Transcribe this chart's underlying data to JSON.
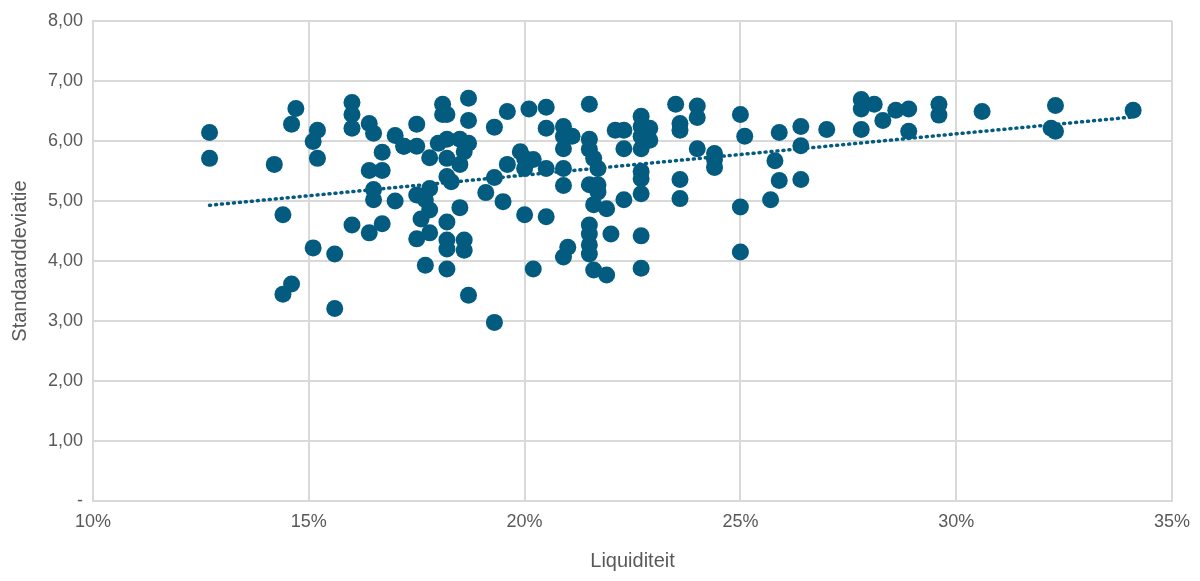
{
  "chart_data": {
    "type": "scatter",
    "xlabel": "Liquiditeit",
    "ylabel": "Standaarddeviatie",
    "xlim": [
      10,
      35
    ],
    "ylim": [
      0,
      8
    ],
    "xticks": [
      {
        "value": 10,
        "label": "10%"
      },
      {
        "value": 15,
        "label": "15%"
      },
      {
        "value": 20,
        "label": "20%"
      },
      {
        "value": 25,
        "label": "25%"
      },
      {
        "value": 30,
        "label": "30%"
      },
      {
        "value": 35,
        "label": "35%"
      }
    ],
    "yticks": [
      {
        "value": 0,
        "label": "-"
      },
      {
        "value": 1,
        "label": "1,00"
      },
      {
        "value": 2,
        "label": "2,00"
      },
      {
        "value": 3,
        "label": "3,00"
      },
      {
        "value": 4,
        "label": "4,00"
      },
      {
        "value": 5,
        "label": "5,00"
      },
      {
        "value": 6,
        "label": "6,00"
      },
      {
        "value": 7,
        "label": "7,00"
      },
      {
        "value": 8,
        "label": "8,00"
      }
    ],
    "grid": true,
    "legend": false,
    "marker": "circle",
    "series": [
      {
        "color": "#035b7f",
        "x": [
          12.7,
          12.7,
          14.2,
          14.4,
          14.4,
          14.6,
          14.7,
          14.6,
          15.2,
          15.1,
          15.2,
          15.1,
          15.6,
          15.6,
          16.0,
          16.0,
          16.0,
          16.4,
          16.5,
          17.0,
          17.2,
          16.7,
          16.4,
          16.7,
          16.5,
          16.5,
          17.0,
          16.0,
          16.4,
          16.7,
          18.1,
          18.1,
          18.2,
          18.7,
          18.7,
          17.5,
          17.2,
          17.5,
          17.8,
          18.0,
          18.2,
          18.5,
          18.7,
          18.6,
          18.2,
          18.5,
          18.2,
          18.3,
          17.8,
          17.5,
          17.7,
          17.8,
          17.6,
          18.5,
          18.2,
          17.8,
          17.5,
          18.2,
          18.6,
          18.2,
          18.6,
          17.7,
          18.2,
          18.7,
          19.3,
          19.3,
          19.6,
          19.1,
          19.3,
          19.5,
          19.6,
          19.9,
          20.0,
          20.2,
          20.0,
          20.5,
          20.0,
          20.5,
          20.2,
          20.1,
          20.5,
          20.5,
          20.9,
          20.9,
          21.1,
          20.9,
          20.9,
          20.9,
          21.5,
          21.5,
          21.5,
          21.6,
          21.7,
          21.5,
          21.7,
          21.7,
          21.6,
          21.9,
          21.5,
          21.5,
          22.0,
          21.5,
          21.0,
          20.9,
          21.5,
          21.6,
          21.9,
          22.1,
          22.3,
          22.3,
          22.3,
          22.7,
          22.7,
          22.9,
          22.7,
          22.9,
          22.7,
          22.7,
          22.7,
          22.7,
          22.7,
          22.7,
          23.5,
          23.6,
          23.6,
          24.0,
          24.0,
          24.0,
          24.4,
          24.4,
          24.4,
          23.6,
          23.6,
          25.0,
          25.1,
          25.0,
          25.0,
          25.9,
          25.8,
          25.9,
          25.7,
          26.4,
          26.4,
          26.4,
          27.0,
          27.8,
          27.8,
          27.8,
          28.1,
          28.3,
          28.6,
          28.9,
          28.9,
          29.6,
          29.6,
          30.6,
          32.3,
          32.2,
          32.3,
          34.1
        ],
        "values": [
          6.14,
          5.71,
          5.61,
          4.77,
          3.45,
          3.62,
          6.54,
          6.28,
          6.18,
          5.99,
          5.71,
          4.22,
          4.12,
          3.21,
          6.64,
          6.44,
          6.21,
          6.29,
          6.13,
          6.09,
          5.91,
          5.81,
          5.51,
          5.51,
          5.19,
          5.02,
          5.0,
          4.6,
          4.47,
          4.62,
          6.61,
          6.44,
          6.44,
          6.71,
          6.34,
          6.28,
          5.91,
          5.91,
          5.72,
          5.96,
          6.03,
          6.03,
          5.96,
          5.82,
          5.71,
          5.61,
          5.41,
          5.32,
          5.21,
          5.1,
          5.02,
          4.85,
          4.7,
          4.89,
          4.65,
          4.47,
          4.37,
          4.35,
          4.35,
          4.2,
          4.18,
          3.93,
          3.87,
          3.43,
          2.98,
          6.23,
          6.49,
          5.14,
          5.39,
          4.99,
          5.61,
          5.82,
          5.71,
          5.69,
          5.54,
          5.54,
          4.77,
          4.74,
          3.87,
          6.53,
          6.56,
          6.21,
          6.24,
          6.08,
          6.08,
          5.87,
          5.54,
          5.26,
          6.61,
          6.03,
          5.86,
          5.71,
          5.54,
          5.27,
          5.27,
          5.15,
          4.94,
          4.87,
          4.6,
          4.45,
          4.45,
          4.27,
          4.23,
          4.07,
          4.12,
          3.85,
          3.77,
          6.18,
          6.18,
          5.87,
          5.02,
          6.41,
          6.24,
          6.21,
          6.08,
          6.01,
          5.87,
          5.49,
          5.37,
          5.12,
          4.42,
          3.88,
          6.61,
          6.29,
          6.18,
          6.58,
          6.39,
          5.87,
          5.79,
          5.69,
          5.56,
          5.36,
          5.04,
          6.44,
          6.08,
          4.9,
          4.15,
          6.14,
          5.67,
          5.34,
          5.02,
          6.24,
          5.92,
          5.36,
          6.19,
          6.69,
          6.53,
          6.19,
          6.61,
          6.34,
          6.51,
          6.53,
          6.16,
          6.61,
          6.43,
          6.49,
          6.59,
          6.21,
          6.16,
          6.51
        ]
      },
      {
        "type": "line",
        "color": "#035b7f",
        "marker": "none",
        "line_style": "dotted",
        "x": [
          12.7,
          34.1
        ],
        "values": [
          4.93,
          6.4
        ]
      }
    ]
  }
}
